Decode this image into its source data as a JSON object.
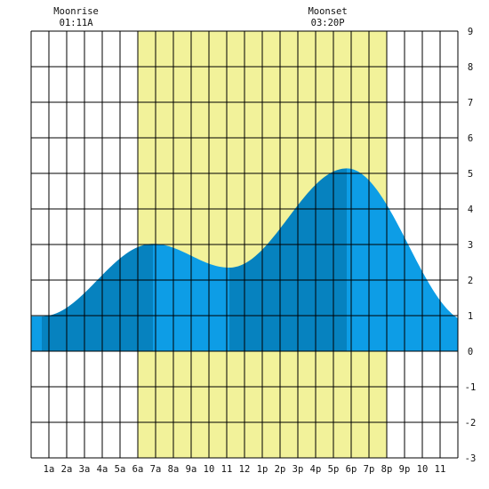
{
  "chart_data": {
    "type": "area",
    "title": "",
    "xlabel": "",
    "ylabel": "",
    "xlim": [
      0,
      24
    ],
    "ylim": [
      -3,
      9
    ],
    "grid": true,
    "x_tick_labels": [
      "1a",
      "2a",
      "3a",
      "4a",
      "5a",
      "6a",
      "7a",
      "8a",
      "9a",
      "10",
      "11",
      "12",
      "1p",
      "2p",
      "3p",
      "4p",
      "5p",
      "6p",
      "7p",
      "8p",
      "9p",
      "10",
      "11"
    ],
    "y_tick_labels": [
      "-3",
      "-2",
      "-1",
      "0",
      "1",
      "2",
      "3",
      "4",
      "5",
      "6",
      "7",
      "8",
      "9"
    ],
    "daylight_band": {
      "start_hour": 6.0,
      "end_hour": 20.0,
      "color": "#f2f29a"
    },
    "annotations": [
      {
        "name": "moonrise",
        "label": "Moonrise",
        "time": "01:11A",
        "hour": 1.18
      },
      {
        "name": "moonset",
        "label": "Moonset",
        "time": "03:20P",
        "hour": 15.33
      }
    ],
    "tide_extrema": [
      {
        "type": "low",
        "hour": 0.6,
        "height": 0.98
      },
      {
        "type": "high",
        "hour": 6.85,
        "height": 3.02
      },
      {
        "type": "low",
        "hour": 11.15,
        "height": 2.35
      },
      {
        "type": "high",
        "hour": 17.75,
        "height": 5.14
      },
      {
        "type": "low",
        "hour": 24.7,
        "height": 0.82
      }
    ],
    "shading_boundaries_hours": [
      0.6,
      6.85,
      11.15,
      17.75
    ],
    "colors": {
      "light_fill": "#0d9de6",
      "dark_fill": "#0682bf",
      "grid": "#000000"
    }
  }
}
